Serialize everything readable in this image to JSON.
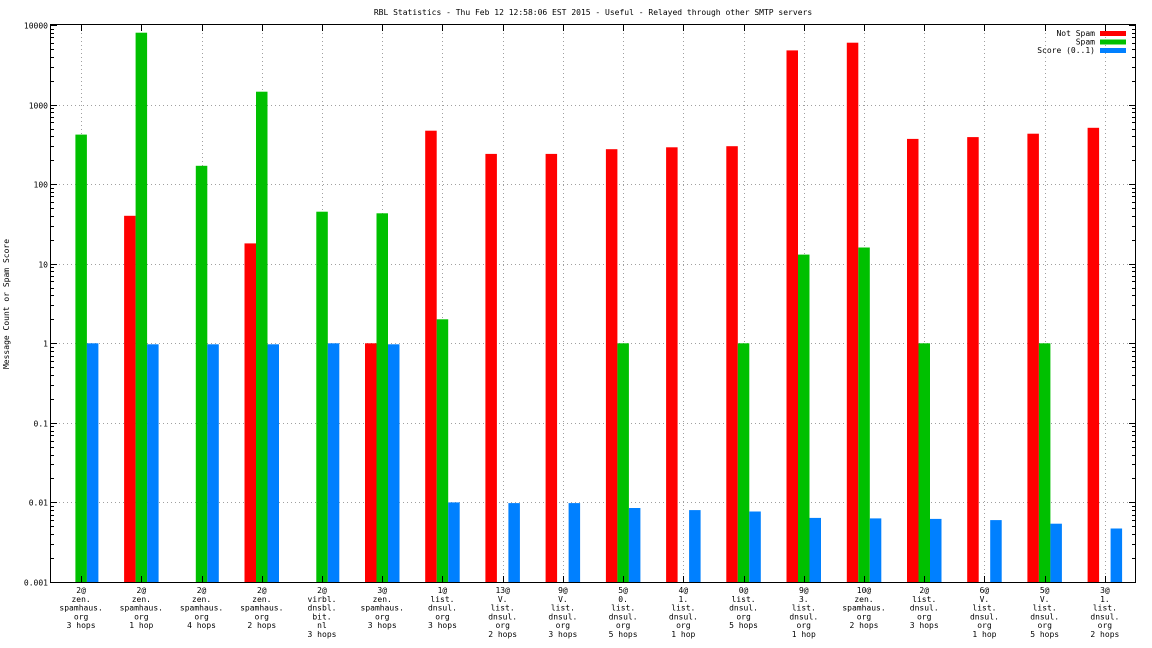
{
  "chart_data": {
    "type": "bar",
    "title": "RBL Statistics - Thu Feb 12 12:58:06 EST 2015 - Useful - Relayed through other SMTP servers",
    "xlabel": "",
    "ylabel": "Message Count or Spam Score",
    "yscale": "log",
    "ylim": [
      0.001,
      10000
    ],
    "yticks": [
      "0.001",
      "0.01",
      "0.1",
      "1",
      "10",
      "100",
      "1000",
      "10000"
    ],
    "grid": true,
    "legend_position": "top-right",
    "categories": [
      [
        "2@",
        "zen.",
        "spamhaus.",
        "org",
        "3 hops"
      ],
      [
        "2@",
        "zen.",
        "spamhaus.",
        "org",
        "1 hop"
      ],
      [
        "2@",
        "zen.",
        "spamhaus.",
        "org",
        "4 hops"
      ],
      [
        "2@",
        "zen.",
        "spamhaus.",
        "org",
        "2 hops"
      ],
      [
        "2@",
        "virbl.",
        "dnsbl.",
        "bit.",
        "nl",
        "3 hops"
      ],
      [
        "3@",
        "zen.",
        "spamhaus.",
        "org",
        "3 hops"
      ],
      [
        "1@",
        "list.",
        "dnsul.",
        "org",
        "3 hops"
      ],
      [
        "13@",
        "V.",
        "list.",
        "dnsul.",
        "org",
        "2 hops"
      ],
      [
        "9@",
        "V.",
        "list.",
        "dnsul.",
        "org",
        "3 hops"
      ],
      [
        "5@",
        "0.",
        "list.",
        "dnsul.",
        "org",
        "5 hops"
      ],
      [
        "4@",
        "1.",
        "list.",
        "dnsul.",
        "org",
        "1 hop"
      ],
      [
        "0@",
        "list.",
        "dnsul.",
        "org",
        "5 hops"
      ],
      [
        "9@",
        "3.",
        "list.",
        "dnsul.",
        "org",
        "1 hop"
      ],
      [
        "10@",
        "zen.",
        "spamhaus.",
        "org",
        "2 hops"
      ],
      [
        "2@",
        "list.",
        "dnsul.",
        "org",
        "3 hops"
      ],
      [
        "6@",
        "V.",
        "list.",
        "dnsul.",
        "org",
        "1 hop"
      ],
      [
        "5@",
        "V.",
        "list.",
        "dnsul.",
        "org",
        "5 hops"
      ],
      [
        "3@",
        "1.",
        "list.",
        "dnsul.",
        "org",
        "2 hops"
      ]
    ],
    "series": [
      {
        "name": "Not Spam",
        "color": "#ff0000",
        "values": [
          null,
          40,
          null,
          18,
          null,
          1,
          470,
          240,
          240,
          275,
          290,
          300,
          4800,
          6000,
          370,
          390,
          430,
          510
        ]
      },
      {
        "name": "Spam",
        "color": "#00c000",
        "values": [
          420,
          8000,
          170,
          1450,
          45,
          43,
          2,
          null,
          null,
          1,
          null,
          1,
          13,
          16,
          1,
          null,
          1,
          null
        ]
      },
      {
        "name": "Score (0..1)",
        "color": "#0080ff",
        "values": [
          1,
          0.97,
          0.97,
          0.97,
          1,
          0.97,
          0.01,
          0.0098,
          0.0098,
          0.0085,
          0.008,
          0.0077,
          0.0064,
          0.0063,
          0.0062,
          0.006,
          0.0054,
          0.0047
        ]
      }
    ]
  }
}
